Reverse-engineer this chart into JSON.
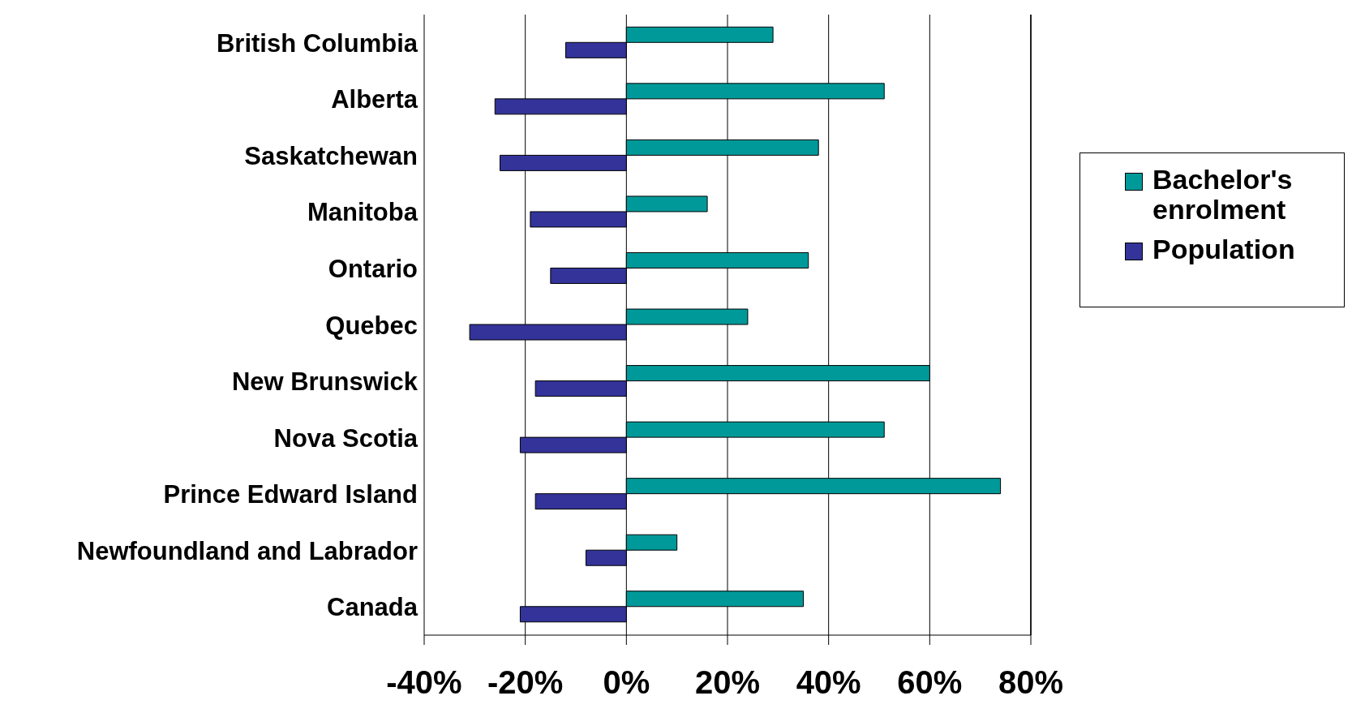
{
  "chart_data": {
    "type": "bar",
    "orientation": "horizontal",
    "categories": [
      "British Columbia",
      "Alberta",
      "Saskatchewan",
      "Manitoba",
      "Ontario",
      "Quebec",
      "New Brunswick",
      "Nova Scotia",
      "Prince Edward Island",
      "Newfoundland and Labrador",
      "Canada"
    ],
    "series": [
      {
        "name": "Bachelor's enrolment",
        "color": "#009999",
        "values": [
          29,
          51,
          38,
          16,
          36,
          24,
          60,
          51,
          74,
          10,
          35
        ]
      },
      {
        "name": "Population",
        "color": "#333399",
        "values": [
          -12,
          -26,
          -25,
          -19,
          -15,
          -31,
          -18,
          -21,
          -18,
          -8,
          -21
        ]
      }
    ],
    "xlim": [
      -40,
      80
    ],
    "xticks": [
      {
        "value": -40,
        "label": "-40%"
      },
      {
        "value": -20,
        "label": "-20%"
      },
      {
        "value": 0,
        "label": "0%"
      },
      {
        "value": 20,
        "label": "20%"
      },
      {
        "value": 40,
        "label": "40%"
      },
      {
        "value": 60,
        "label": "60%"
      },
      {
        "value": 80,
        "label": "80%"
      }
    ],
    "grid": "x",
    "legend": "right"
  }
}
